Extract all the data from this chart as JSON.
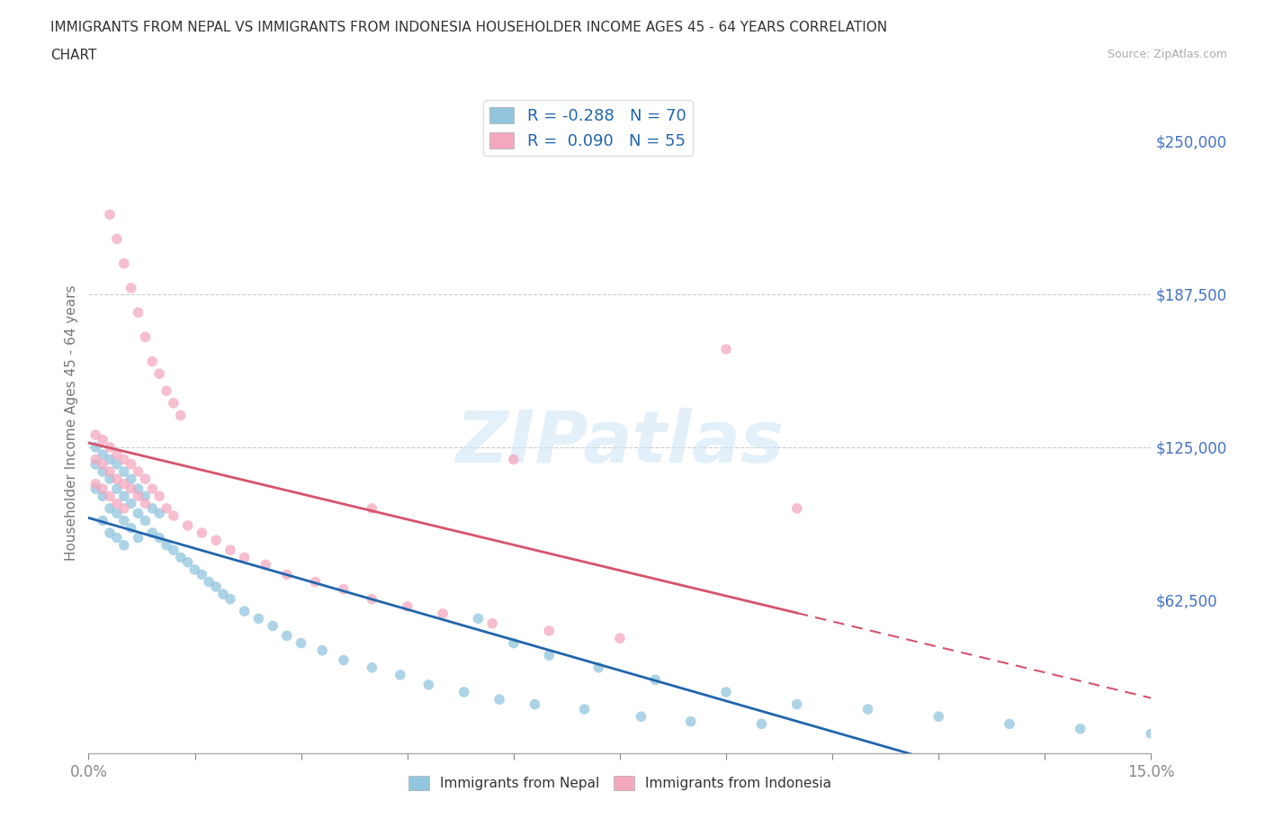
{
  "title_line1": "IMMIGRANTS FROM NEPAL VS IMMIGRANTS FROM INDONESIA HOUSEHOLDER INCOME AGES 45 - 64 YEARS CORRELATION",
  "title_line2": "CHART",
  "source": "Source: ZipAtlas.com",
  "ylabel": "Householder Income Ages 45 - 64 years",
  "nepal_label": "Immigrants from Nepal",
  "indonesia_label": "Immigrants from Indonesia",
  "nepal_R": -0.288,
  "nepal_N": 70,
  "indonesia_R": 0.09,
  "indonesia_N": 55,
  "nepal_color": "#92c5de",
  "indonesia_color": "#f4a8be",
  "nepal_line_color": "#2166ac",
  "indonesia_line_color": "#d6536d",
  "xlim": [
    0,
    0.15
  ],
  "ylim": [
    0,
    270000
  ],
  "yticks": [
    62500,
    125000,
    187500,
    250000
  ],
  "ytick_labels": [
    "$62,500",
    "$125,000",
    "$187,500",
    "$250,000"
  ],
  "xtick_labels_ends": [
    "0.0%",
    "15.0%"
  ],
  "nepal_x": [
    0.001,
    0.001,
    0.001,
    0.002,
    0.002,
    0.002,
    0.002,
    0.003,
    0.003,
    0.003,
    0.003,
    0.004,
    0.004,
    0.004,
    0.004,
    0.005,
    0.005,
    0.005,
    0.005,
    0.006,
    0.006,
    0.006,
    0.007,
    0.007,
    0.007,
    0.008,
    0.008,
    0.009,
    0.009,
    0.01,
    0.01,
    0.011,
    0.012,
    0.013,
    0.014,
    0.015,
    0.016,
    0.017,
    0.018,
    0.019,
    0.02,
    0.022,
    0.024,
    0.026,
    0.028,
    0.03,
    0.033,
    0.036,
    0.04,
    0.044,
    0.048,
    0.053,
    0.058,
    0.063,
    0.07,
    0.078,
    0.085,
    0.095,
    0.055,
    0.06,
    0.065,
    0.072,
    0.08,
    0.09,
    0.1,
    0.11,
    0.12,
    0.13,
    0.14,
    0.15
  ],
  "nepal_y": [
    125000,
    118000,
    108000,
    122000,
    115000,
    105000,
    95000,
    120000,
    112000,
    100000,
    90000,
    118000,
    108000,
    98000,
    88000,
    115000,
    105000,
    95000,
    85000,
    112000,
    102000,
    92000,
    108000,
    98000,
    88000,
    105000,
    95000,
    100000,
    90000,
    98000,
    88000,
    85000,
    83000,
    80000,
    78000,
    75000,
    73000,
    70000,
    68000,
    65000,
    63000,
    58000,
    55000,
    52000,
    48000,
    45000,
    42000,
    38000,
    35000,
    32000,
    28000,
    25000,
    22000,
    20000,
    18000,
    15000,
    13000,
    12000,
    55000,
    45000,
    40000,
    35000,
    30000,
    25000,
    20000,
    18000,
    15000,
    12000,
    10000,
    8000
  ],
  "indonesia_x": [
    0.001,
    0.001,
    0.001,
    0.002,
    0.002,
    0.002,
    0.003,
    0.003,
    0.003,
    0.004,
    0.004,
    0.004,
    0.005,
    0.005,
    0.005,
    0.006,
    0.006,
    0.007,
    0.007,
    0.008,
    0.008,
    0.009,
    0.01,
    0.011,
    0.012,
    0.014,
    0.016,
    0.018,
    0.02,
    0.022,
    0.025,
    0.028,
    0.032,
    0.036,
    0.04,
    0.045,
    0.05,
    0.057,
    0.065,
    0.075,
    0.003,
    0.004,
    0.005,
    0.006,
    0.007,
    0.008,
    0.009,
    0.01,
    0.011,
    0.012,
    0.013,
    0.04,
    0.06,
    0.09,
    0.1
  ],
  "indonesia_y": [
    130000,
    120000,
    110000,
    128000,
    118000,
    108000,
    125000,
    115000,
    105000,
    122000,
    112000,
    102000,
    120000,
    110000,
    100000,
    118000,
    108000,
    115000,
    105000,
    112000,
    102000,
    108000,
    105000,
    100000,
    97000,
    93000,
    90000,
    87000,
    83000,
    80000,
    77000,
    73000,
    70000,
    67000,
    63000,
    60000,
    57000,
    53000,
    50000,
    47000,
    220000,
    210000,
    200000,
    190000,
    180000,
    170000,
    160000,
    155000,
    148000,
    143000,
    138000,
    100000,
    120000,
    165000,
    100000
  ]
}
